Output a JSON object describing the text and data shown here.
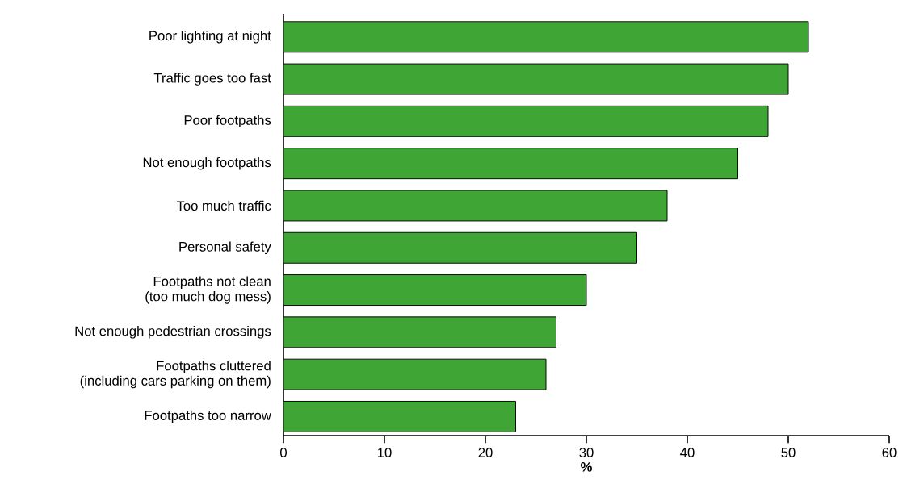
{
  "chart_data": {
    "type": "bar",
    "orientation": "horizontal",
    "xlabel": "%",
    "categories": [
      "Poor lighting at night",
      "Traffic goes too fast",
      "Poor footpaths",
      "Not enough footpaths",
      "Too much traffic",
      "Personal safety",
      "Footpaths not clean\n(too much dog mess)",
      "Not enough pedestrian crossings",
      "Footpaths cluttered\n(including cars parking on them)",
      "Footpaths too narrow"
    ],
    "values": [
      52,
      50,
      48,
      45,
      38,
      35,
      30,
      27,
      26,
      23
    ],
    "color": "#3fa535",
    "xlim": [
      0,
      60
    ],
    "xticks": [
      0,
      10,
      20,
      30,
      40,
      50,
      60
    ]
  }
}
